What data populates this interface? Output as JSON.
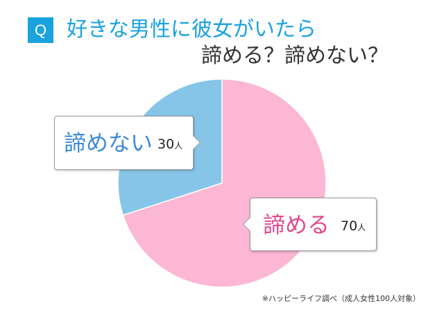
{
  "badge": "Q",
  "title": {
    "line1": "好きな男性に彼女がいたら",
    "line2": "諦める？諦めない？"
  },
  "chart_data": {
    "type": "pie",
    "title": "好きな男性に彼女がいたら 諦める？諦めない？",
    "unit": "人",
    "slices": [
      {
        "label": "諦めない",
        "value": 30,
        "color": "#87c5e8"
      },
      {
        "label": "諦める",
        "value": 70,
        "color": "#fbb7d3"
      }
    ]
  },
  "callouts": {
    "left": {
      "label": "諦めない",
      "count": "30",
      "unit": "人"
    },
    "right": {
      "label": "諦める",
      "count": "70",
      "unit": "人"
    }
  },
  "source": "※ハッピーライフ調べ（成人女性100人対象）",
  "colors": {
    "accent": "#1aa2e0",
    "not_give_up": "#87c5e8",
    "give_up": "#fbb7d3"
  }
}
